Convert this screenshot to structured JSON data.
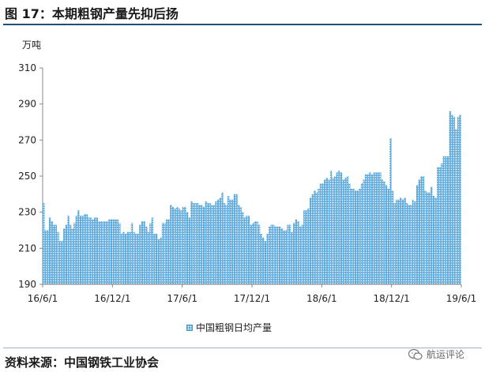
{
  "figure": {
    "title": "图 17：本期粗钢产量先抑后扬",
    "source": "资料来源：中国钢铁工业协会",
    "watermark_text": "航运评论",
    "watermark_icon": "wechat-icon"
  },
  "colors": {
    "bar_fill": "#5aa9dd",
    "bar_dot": "#ffffff",
    "axis": "#888888",
    "title_rule": "#1f4e79"
  },
  "chart_data": {
    "type": "bar",
    "unit_label": "万吨",
    "ylim": [
      190,
      310
    ],
    "yticks": [
      190,
      210,
      230,
      250,
      270,
      290,
      310
    ],
    "xtick_labels": [
      "16/6/1",
      "16/12/1",
      "17/6/1",
      "17/12/1",
      "18/6/1",
      "18/12/1",
      "19/6/1"
    ],
    "series": [
      {
        "name": "中国粗钢日均产量",
        "values": [
          235,
          220,
          220,
          227,
          225,
          223,
          223,
          219,
          214,
          214,
          221,
          223,
          228,
          223,
          221,
          224,
          228,
          231,
          228,
          228,
          229,
          229,
          227,
          227,
          226,
          227,
          227,
          225,
          225,
          225,
          225,
          225,
          226,
          226,
          226,
          226,
          226,
          224,
          218,
          219,
          218,
          219,
          219,
          224,
          219,
          218,
          218,
          223,
          225,
          225,
          222,
          219,
          224,
          227,
          218,
          218,
          215,
          216,
          224,
          224,
          226,
          226,
          234,
          233,
          232,
          233,
          232,
          231,
          233,
          233,
          230,
          227,
          236,
          235,
          235,
          235,
          234,
          234,
          233,
          236,
          235,
          235,
          234,
          234,
          236,
          237,
          238,
          241,
          235,
          234,
          239,
          237,
          237,
          240,
          240,
          234,
          233,
          230,
          227,
          228,
          228,
          223,
          224,
          225,
          225,
          223,
          218,
          216,
          214,
          218,
          222,
          223,
          223,
          222,
          222,
          222,
          221,
          220,
          220,
          223,
          223,
          219,
          224,
          226,
          225,
          222,
          223,
          231,
          231,
          232,
          238,
          240,
          242,
          241,
          243,
          246,
          246,
          248,
          249,
          248,
          253,
          249,
          250,
          252,
          253,
          252,
          248,
          249,
          250,
          246,
          243,
          243,
          242,
          242,
          243,
          246,
          248,
          251,
          251,
          252,
          251,
          252,
          252,
          252,
          252,
          248,
          247,
          245,
          243,
          271,
          242,
          235,
          237,
          237,
          238,
          237,
          238,
          235,
          234,
          234,
          237,
          236,
          245,
          248,
          250,
          250,
          242,
          241,
          241,
          244,
          239,
          238,
          255,
          255,
          257,
          261,
          261,
          261,
          286,
          284,
          283,
          276,
          283,
          284
        ]
      }
    ]
  }
}
